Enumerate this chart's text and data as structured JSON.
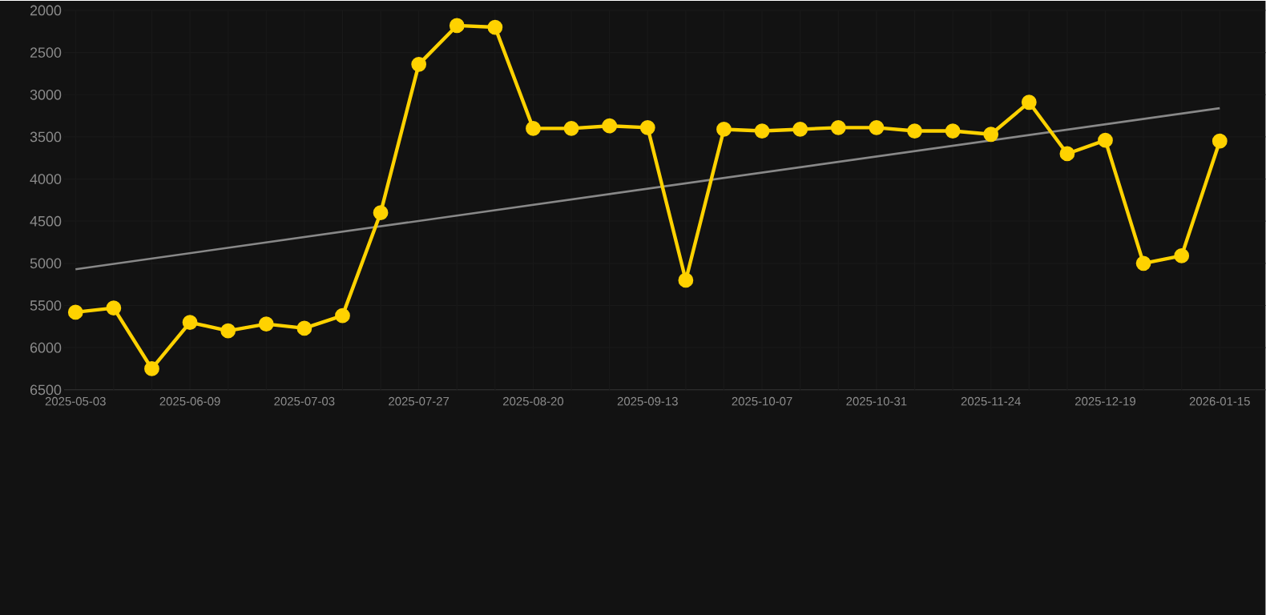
{
  "chart_data": {
    "type": "line",
    "categories": [
      "2025-05-03",
      null,
      null,
      "2025-06-09",
      null,
      null,
      "2025-07-03",
      null,
      null,
      "2025-07-27",
      null,
      null,
      "2025-08-20",
      null,
      null,
      "2025-09-13",
      null,
      null,
      "2025-10-07",
      null,
      null,
      "2025-10-31",
      null,
      null,
      "2025-11-24",
      null,
      null,
      "2025-12-19",
      null,
      null,
      "2026-01-15"
    ],
    "series": [
      {
        "color": "#ffd200",
        "marker": "circle",
        "values": [
          5580,
          5530,
          6250,
          5700,
          5800,
          5720,
          5770,
          5620,
          4400,
          2640,
          2180,
          2200,
          3400,
          3400,
          3370,
          3390,
          5200,
          3410,
          3430,
          3410,
          3390,
          3390,
          3430,
          3430,
          3470,
          3090,
          3700,
          3540,
          5000,
          4910,
          3550
        ]
      },
      {
        "type": "line",
        "color": "#888888",
        "marker": "none",
        "values": [
          5070,
          null,
          null,
          null,
          null,
          null,
          null,
          null,
          null,
          null,
          null,
          null,
          null,
          null,
          null,
          null,
          null,
          null,
          null,
          null,
          null,
          null,
          null,
          null,
          null,
          null,
          null,
          null,
          null,
          null,
          3160
        ]
      }
    ],
    "ylim": [
      6500,
      2000
    ],
    "yticks": [
      2000,
      2500,
      3000,
      3500,
      4000,
      4500,
      5000,
      5500,
      6000,
      6500
    ],
    "grid": true
  }
}
